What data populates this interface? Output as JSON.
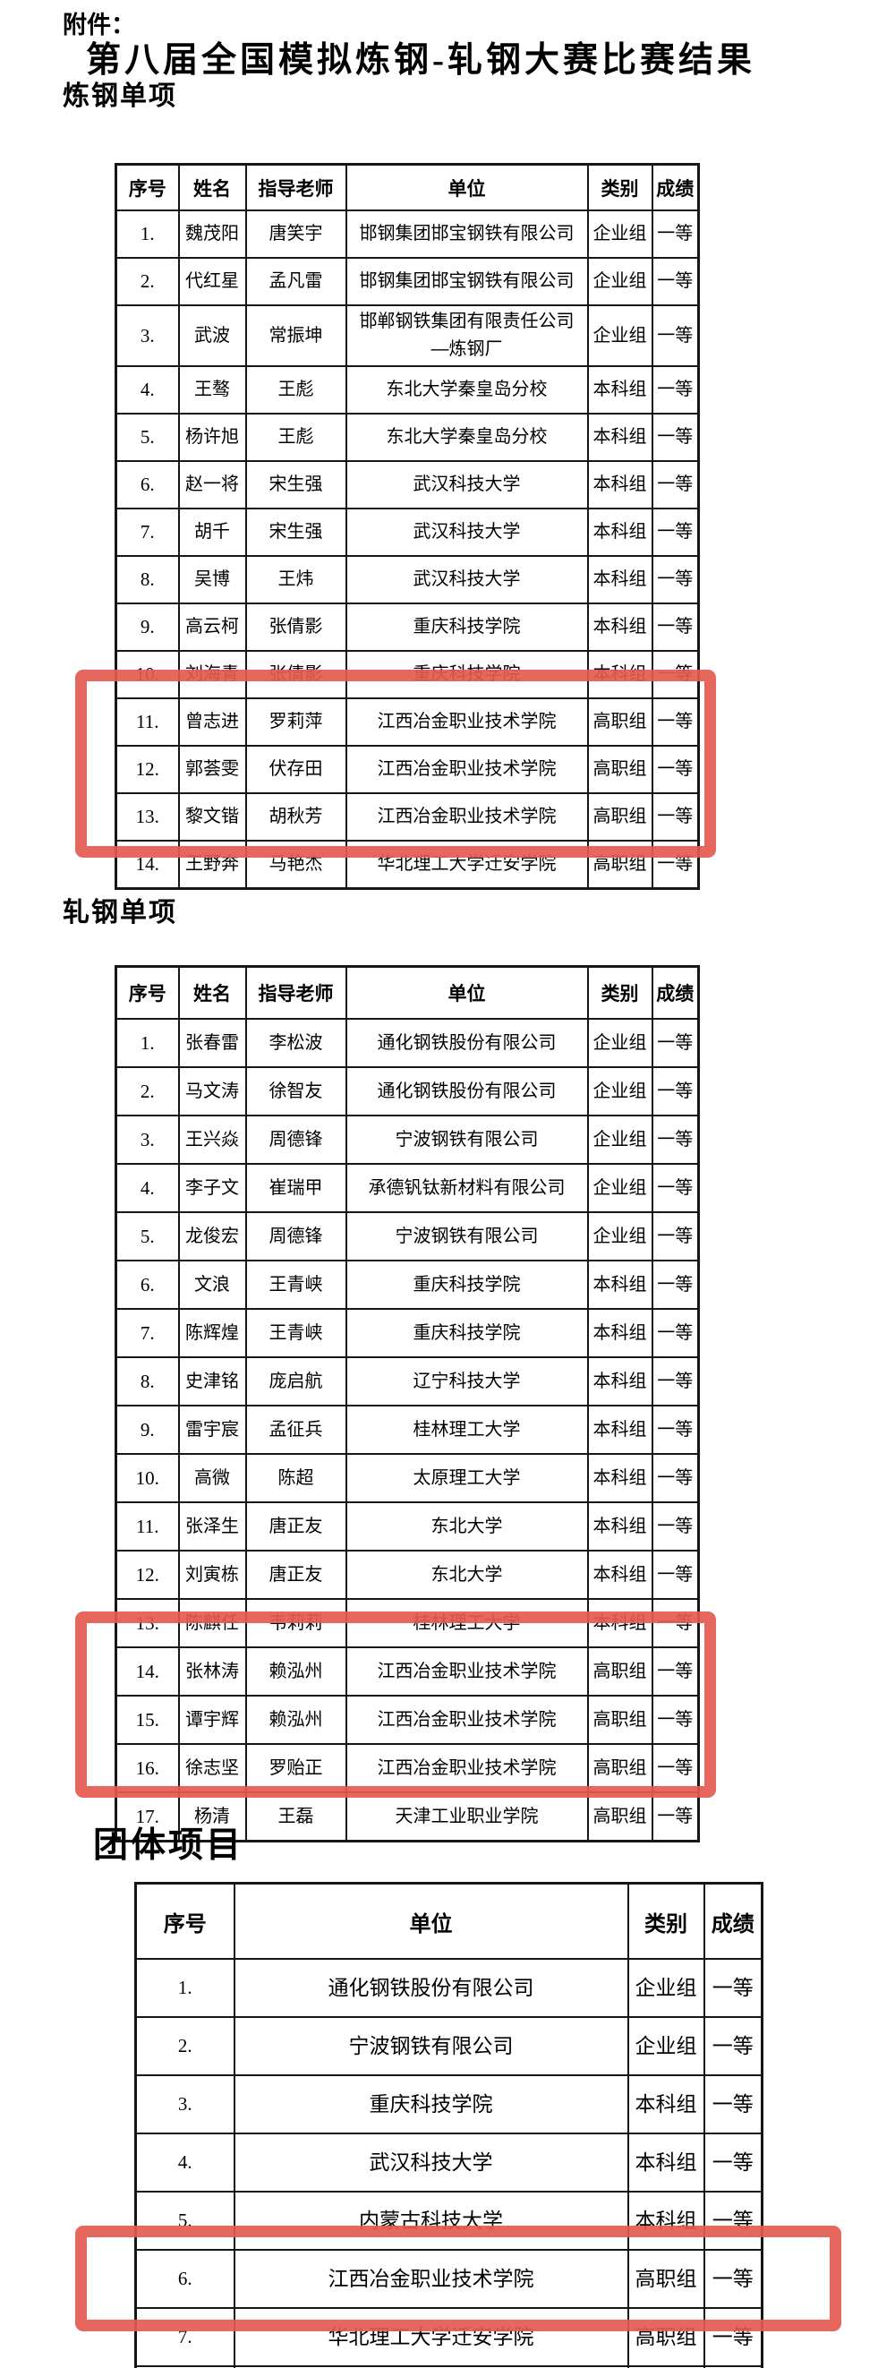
{
  "page": {
    "attachment_label": "附件：",
    "title": "第八届全国模拟炼钢-轧钢大赛比赛结果",
    "highlight_color": "#e45a50"
  },
  "sections": [
    {
      "heading": "炼钢单项",
      "columns": [
        "序号",
        "姓名",
        "指导老师",
        "单位",
        "类别",
        "成绩"
      ],
      "fields": [
        "no",
        "name",
        "advisor",
        "org",
        "category",
        "result"
      ],
      "rows": [
        {
          "no": "1.",
          "name": "魏茂阳",
          "advisor": "唐笑宇",
          "org": "邯钢集团邯宝钢铁有限公司",
          "category": "企业组",
          "result": "一等"
        },
        {
          "no": "2.",
          "name": "代红星",
          "advisor": "孟凡雷",
          "org": "邯钢集团邯宝钢铁有限公司",
          "category": "企业组",
          "result": "一等"
        },
        {
          "no": "3.",
          "name": "武波",
          "advisor": "常振坤",
          "org": "邯郸钢铁集团有限责任公司\n—炼钢厂",
          "category": "企业组",
          "result": "一等"
        },
        {
          "no": "4.",
          "name": "王骜",
          "advisor": "王彪",
          "org": "东北大学秦皇岛分校",
          "category": "本科组",
          "result": "一等"
        },
        {
          "no": "5.",
          "name": "杨许旭",
          "advisor": "王彪",
          "org": "东北大学秦皇岛分校",
          "category": "本科组",
          "result": "一等"
        },
        {
          "no": "6.",
          "name": "赵一将",
          "advisor": "宋生强",
          "org": "武汉科技大学",
          "category": "本科组",
          "result": "一等"
        },
        {
          "no": "7.",
          "name": "胡千",
          "advisor": "宋生强",
          "org": "武汉科技大学",
          "category": "本科组",
          "result": "一等"
        },
        {
          "no": "8.",
          "name": "吴博",
          "advisor": "王炜",
          "org": "武汉科技大学",
          "category": "本科组",
          "result": "一等"
        },
        {
          "no": "9.",
          "name": "高云柯",
          "advisor": "张倩影",
          "org": "重庆科技学院",
          "category": "本科组",
          "result": "一等"
        },
        {
          "no": "10.",
          "name": "刘海青",
          "advisor": "张倩影",
          "org": "重庆科技学院",
          "category": "本科组",
          "result": "一等"
        },
        {
          "no": "11.",
          "name": "曾志进",
          "advisor": "罗莉萍",
          "org": "江西冶金职业技术学院",
          "category": "高职组",
          "result": "一等"
        },
        {
          "no": "12.",
          "name": "郭荟雯",
          "advisor": "伏存田",
          "org": "江西冶金职业技术学院",
          "category": "高职组",
          "result": "一等"
        },
        {
          "no": "13.",
          "name": "黎文锴",
          "advisor": "胡秋芳",
          "org": "江西冶金职业技术学院",
          "category": "高职组",
          "result": "一等"
        },
        {
          "no": "14.",
          "name": "王野奔",
          "advisor": "马艳杰",
          "org": "华北理工大学迁安学院",
          "category": "高职组",
          "result": "一等"
        }
      ],
      "highlighted_row_nos": [
        "11.",
        "12.",
        "13."
      ]
    },
    {
      "heading": "轧钢单项",
      "columns": [
        "序号",
        "姓名",
        "指导老师",
        "单位",
        "类别",
        "成绩"
      ],
      "fields": [
        "no",
        "name",
        "advisor",
        "org",
        "category",
        "result"
      ],
      "rows": [
        {
          "no": "1.",
          "name": "张春雷",
          "advisor": "李松波",
          "org": "通化钢铁股份有限公司",
          "category": "企业组",
          "result": "一等"
        },
        {
          "no": "2.",
          "name": "马文涛",
          "advisor": "徐智友",
          "org": "通化钢铁股份有限公司",
          "category": "企业组",
          "result": "一等"
        },
        {
          "no": "3.",
          "name": "王兴焱",
          "advisor": "周德锋",
          "org": "宁波钢铁有限公司",
          "category": "企业组",
          "result": "一等"
        },
        {
          "no": "4.",
          "name": "李子文",
          "advisor": "崔瑞甲",
          "org": "承德钒钛新材料有限公司",
          "category": "企业组",
          "result": "一等"
        },
        {
          "no": "5.",
          "name": "龙俊宏",
          "advisor": "周德锋",
          "org": "宁波钢铁有限公司",
          "category": "企业组",
          "result": "一等"
        },
        {
          "no": "6.",
          "name": "文浪",
          "advisor": "王青峡",
          "org": "重庆科技学院",
          "category": "本科组",
          "result": "一等"
        },
        {
          "no": "7.",
          "name": "陈辉煌",
          "advisor": "王青峡",
          "org": "重庆科技学院",
          "category": "本科组",
          "result": "一等"
        },
        {
          "no": "8.",
          "name": "史津铭",
          "advisor": "庞启航",
          "org": "辽宁科技大学",
          "category": "本科组",
          "result": "一等"
        },
        {
          "no": "9.",
          "name": "雷宇宸",
          "advisor": "孟征兵",
          "org": "桂林理工大学",
          "category": "本科组",
          "result": "一等"
        },
        {
          "no": "10.",
          "name": "高微",
          "advisor": "陈超",
          "org": "太原理工大学",
          "category": "本科组",
          "result": "一等"
        },
        {
          "no": "11.",
          "name": "张泽生",
          "advisor": "唐正友",
          "org": "东北大学",
          "category": "本科组",
          "result": "一等"
        },
        {
          "no": "12.",
          "name": "刘寅栋",
          "advisor": "唐正友",
          "org": "东北大学",
          "category": "本科组",
          "result": "一等"
        },
        {
          "no": "13.",
          "name": "陈麒任",
          "advisor": "韦莉莉",
          "org": "桂林理工大学",
          "category": "本科组",
          "result": "一等"
        },
        {
          "no": "14.",
          "name": "张林涛",
          "advisor": "赖泓州",
          "org": "江西冶金职业技术学院",
          "category": "高职组",
          "result": "一等"
        },
        {
          "no": "15.",
          "name": "谭宇辉",
          "advisor": "赖泓州",
          "org": "江西冶金职业技术学院",
          "category": "高职组",
          "result": "一等"
        },
        {
          "no": "16.",
          "name": "徐志坚",
          "advisor": "罗贻正",
          "org": "江西冶金职业技术学院",
          "category": "高职组",
          "result": "一等"
        },
        {
          "no": "17.",
          "name": "杨清",
          "advisor": "王磊",
          "org": "天津工业职业学院",
          "category": "高职组",
          "result": "一等"
        }
      ],
      "highlighted_row_nos": [
        "14.",
        "15.",
        "16."
      ]
    },
    {
      "heading": "团体项目",
      "columns": [
        "序号",
        "单位",
        "类别",
        "成绩"
      ],
      "fields": [
        "no",
        "org",
        "category",
        "result"
      ],
      "rows": [
        {
          "no": "1.",
          "org": "通化钢铁股份有限公司",
          "category": "企业组",
          "result": "一等"
        },
        {
          "no": "2.",
          "org": "宁波钢铁有限公司",
          "category": "企业组",
          "result": "一等"
        },
        {
          "no": "3.",
          "org": "重庆科技学院",
          "category": "本科组",
          "result": "一等"
        },
        {
          "no": "4.",
          "org": "武汉科技大学",
          "category": "本科组",
          "result": "一等"
        },
        {
          "no": "5.",
          "org": "内蒙古科技大学",
          "category": "本科组",
          "result": "一等"
        },
        {
          "no": "6.",
          "org": "江西冶金职业技术学院",
          "category": "高职组",
          "result": "一等"
        },
        {
          "no": "7.",
          "org": "华北理工大学迁安学院",
          "category": "高职组",
          "result": "一等"
        }
      ],
      "highlighted_row_nos": [
        "6."
      ],
      "partial_next_row": true
    }
  ]
}
